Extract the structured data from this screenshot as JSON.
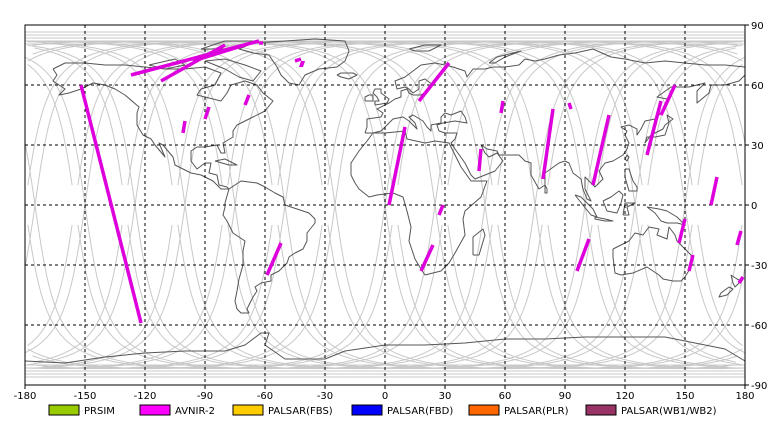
{
  "map": {
    "lon_range": [
      -180,
      180
    ],
    "lat_range": [
      -90,
      90
    ],
    "grid": "dashed",
    "x_ticks": [
      {
        "value": -180,
        "label": "-180"
      },
      {
        "value": -150,
        "label": "-150"
      },
      {
        "value": -120,
        "label": "-120"
      },
      {
        "value": -90,
        "label": "-90"
      },
      {
        "value": -60,
        "label": "-60"
      },
      {
        "value": -30,
        "label": "-30"
      },
      {
        "value": 0,
        "label": "0"
      },
      {
        "value": 30,
        "label": "30"
      },
      {
        "value": 60,
        "label": "60"
      },
      {
        "value": 90,
        "label": "90"
      },
      {
        "value": 120,
        "label": "120"
      },
      {
        "value": 150,
        "label": "150"
      },
      {
        "value": 180,
        "label": "180"
      }
    ],
    "y_ticks": [
      {
        "value": 90,
        "label": "90"
      },
      {
        "value": 60,
        "label": "60"
      },
      {
        "value": 30,
        "label": "30"
      },
      {
        "value": 0,
        "label": "0"
      },
      {
        "value": -30,
        "label": "-30"
      },
      {
        "value": -60,
        "label": "-60"
      },
      {
        "value": -90,
        "label": "-90"
      }
    ],
    "colors": {
      "coastline": "#555555",
      "orbit": "#c8c8c8",
      "grid": "#000000",
      "background": "#ffffff"
    },
    "orbit_ascending_lons": [
      -175,
      -150,
      -125,
      -100,
      -75,
      -50,
      -25,
      0,
      25,
      50,
      75,
      100,
      125,
      150
    ]
  },
  "legend": [
    {
      "label": "PRSIM",
      "color": "#99cc00"
    },
    {
      "label": "AVNIR-2",
      "color": "#ff00ff"
    },
    {
      "label": "PALSAR(FBS)",
      "color": "#ffcc00"
    },
    {
      "label": "PALSAR(FBD)",
      "color": "#0000ff"
    },
    {
      "label": "PALSAR(PLR)",
      "color": "#ff6600"
    },
    {
      "label": "PALSAR(WB1/WB2)",
      "color": "#993366"
    }
  ],
  "acquisitions": {
    "sensor": "AVNIR-2",
    "color": "#dd00dd",
    "strips": [
      {
        "from": [
          -152,
          60
        ],
        "to": [
          -122,
          -59
        ]
      },
      {
        "from": [
          -127,
          65
        ],
        "to": [
          -63,
          82
        ]
      },
      {
        "from": [
          -112,
          62
        ],
        "to": [
          -80,
          80
        ]
      },
      {
        "from": [
          -96,
          72
        ],
        "to": [
          -70,
          80
        ]
      },
      {
        "from": [
          -100,
          42
        ],
        "to": [
          -101,
          36
        ]
      },
      {
        "from": [
          -88,
          49
        ],
        "to": [
          -90,
          43
        ]
      },
      {
        "from": [
          -68,
          55
        ],
        "to": [
          -70,
          50
        ]
      },
      {
        "from": [
          -63,
          81
        ],
        "to": [
          -61,
          81
        ]
      },
      {
        "from": [
          -52,
          -19
        ],
        "to": [
          -59,
          -35
        ]
      },
      {
        "from": [
          -42,
          73
        ],
        "to": [
          -45,
          72
        ]
      },
      {
        "from": [
          2,
          0
        ],
        "to": [
          10,
          39
        ]
      },
      {
        "from": [
          17,
          52
        ],
        "to": [
          32,
          71
        ]
      },
      {
        "from": [
          24,
          -20
        ],
        "to": [
          18,
          -33
        ]
      },
      {
        "from": [
          29,
          0
        ],
        "to": [
          27,
          -5
        ]
      },
      {
        "from": [
          48,
          28
        ],
        "to": [
          47,
          17
        ]
      },
      {
        "from": [
          59,
          52
        ],
        "to": [
          58,
          46
        ]
      },
      {
        "from": [
          84,
          48
        ],
        "to": [
          79,
          13
        ]
      },
      {
        "from": [
          92,
          51
        ],
        "to": [
          93,
          48
        ]
      },
      {
        "from": [
          102,
          -17
        ],
        "to": [
          96,
          -33
        ]
      },
      {
        "from": [
          112,
          45
        ],
        "to": [
          104,
          10
        ]
      },
      {
        "from": [
          138,
          52
        ],
        "to": [
          131,
          25
        ]
      },
      {
        "from": [
          145,
          60
        ],
        "to": [
          138,
          45
        ]
      },
      {
        "from": [
          150,
          -7
        ],
        "to": [
          147,
          -19
        ]
      },
      {
        "from": [
          166,
          14
        ],
        "to": [
          163,
          0
        ]
      },
      {
        "from": [
          154,
          -25
        ],
        "to": [
          152,
          -33
        ]
      },
      {
        "from": [
          178,
          -13
        ],
        "to": [
          176,
          -20
        ]
      },
      {
        "from": [
          179,
          -36
        ],
        "to": [
          177,
          -39
        ]
      }
    ]
  }
}
